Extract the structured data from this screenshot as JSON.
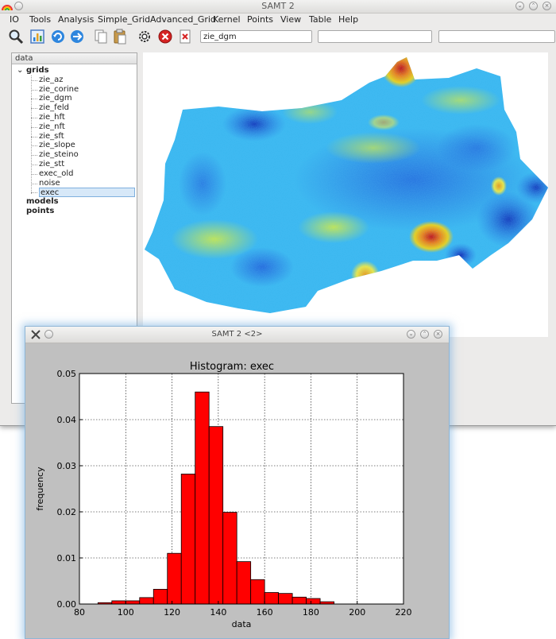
{
  "window": {
    "title": "SAMT 2"
  },
  "menu": [
    "IO",
    "Tools",
    "Analysis",
    "Simple_Grid",
    "Advanced_Grid",
    "Kernel",
    "Points",
    "View",
    "Table",
    "Help"
  ],
  "toolbar": {
    "icons": [
      "zoom-icon",
      "chart-icon",
      "refresh-icon",
      "forward-icon",
      "copy-icon",
      "paste-icon",
      "gear-icon",
      "stop-icon",
      "delete-icon"
    ],
    "input1_value": "zie_dgm",
    "input2_value": "",
    "input3_value": ""
  },
  "tree": {
    "header": "data",
    "root_grids": "grids",
    "grids": [
      "zie_az",
      "zie_corine",
      "zie_dgm",
      "zie_feld",
      "zie_hft",
      "zie_nft",
      "zie_sft",
      "zie_slope",
      "zie_steino",
      "zie_stt",
      "exec_old",
      "noise",
      "exec"
    ],
    "selected": "exec",
    "root_models": "models",
    "root_points": "points",
    "expand_symbol": "⌄"
  },
  "histogram_window": {
    "title": "SAMT 2 <2>"
  },
  "chart_data": {
    "type": "bar",
    "title": "Histogram: exec",
    "xlabel": "data",
    "ylabel": "frequency",
    "xlim": [
      80,
      220
    ],
    "ylim": [
      0,
      0.05
    ],
    "xticks": [
      80,
      100,
      120,
      140,
      160,
      180,
      200,
      220
    ],
    "yticks": [
      0.0,
      0.01,
      0.02,
      0.03,
      0.04,
      0.05
    ],
    "ytick_labels": [
      "0.00",
      "0.01",
      "0.02",
      "0.03",
      "0.04",
      "0.05"
    ],
    "bin_edges": [
      88,
      94,
      100,
      106,
      112,
      118,
      124,
      130,
      136,
      142,
      148,
      154,
      160,
      166,
      172,
      178,
      184,
      190
    ],
    "values": [
      0.0003,
      0.0007,
      0.0007,
      0.0014,
      0.0032,
      0.011,
      0.0282,
      0.046,
      0.0385,
      0.0199,
      0.0092,
      0.0053,
      0.0025,
      0.0023,
      0.0015,
      0.0012,
      0.0005,
      0.0001
    ],
    "bar_color": "#ff0000",
    "grid": true
  },
  "colors": {
    "accent": "#7fb0de",
    "bar": "#ff0000"
  }
}
